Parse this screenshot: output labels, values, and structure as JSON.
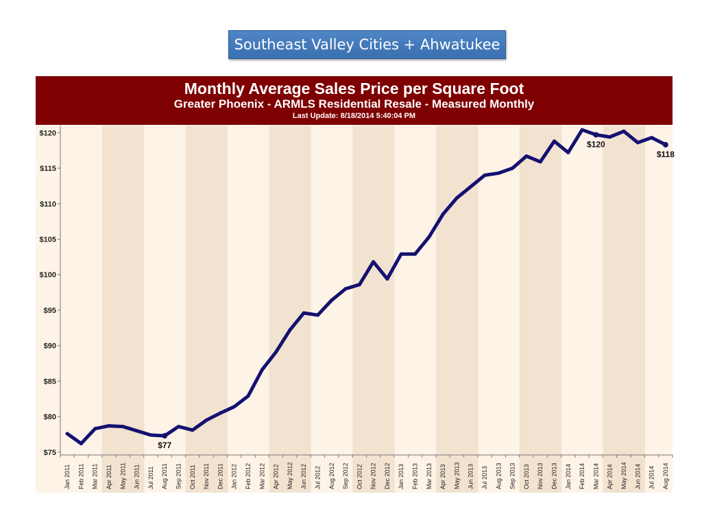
{
  "slide": {
    "title": "Southeast Valley Cities + Ahwatukee"
  },
  "chart_data": {
    "type": "line",
    "title": "Monthly Average Sales Price per Square Foot",
    "subtitle": "Greater Phoenix - ARMLS Residential Resale - Measured Monthly",
    "update": "Last Update: 8/18/2014 5:40:04 PM",
    "categories": [
      "Jan 2011",
      "Feb 2011",
      "Mar 2011",
      "Apr 2011",
      "May 2011",
      "Jun 2011",
      "Jul 2011",
      "Aug 2011",
      "Sep 2011",
      "Oct 2011",
      "Nov 2011",
      "Dec 2011",
      "Jan 2012",
      "Feb 2012",
      "Mar 2012",
      "Apr 2012",
      "May 2012",
      "Jun 2012",
      "Jul 2012",
      "Aug 2012",
      "Sep 2012",
      "Oct 2012",
      "Nov 2012",
      "Dec 2012",
      "Jan 2013",
      "Feb 2013",
      "Mar 2013",
      "Apr 2013",
      "May 2013",
      "Jun 2013",
      "Jul 2013",
      "Aug 2013",
      "Sep 2013",
      "Oct 2013",
      "Nov 2013",
      "Dec 2013",
      "Jan 2014",
      "Feb 2014",
      "Mar 2014",
      "Apr 2014",
      "May 2014",
      "Jun 2014",
      "Jul 2014",
      "Aug 2014"
    ],
    "values": [
      77.6,
      76.2,
      78.3,
      78.7,
      78.6,
      78.0,
      77.4,
      77.3,
      78.6,
      78.1,
      79.5,
      80.5,
      81.4,
      82.9,
      86.6,
      89.1,
      92.2,
      94.6,
      94.3,
      96.4,
      98.0,
      98.6,
      101.8,
      99.4,
      102.9,
      102.9,
      105.3,
      108.5,
      110.8,
      112.4,
      114.0,
      114.3,
      115.0,
      116.7,
      115.9,
      118.8,
      117.2,
      120.4,
      119.7,
      119.4,
      120.2,
      118.6,
      119.3,
      118.3
    ],
    "ylim": [
      74.6,
      121.0
    ],
    "yticks": [
      "$75",
      "$80",
      "$85",
      "$90",
      "$95",
      "$100",
      "$105",
      "$110",
      "$115",
      "$120"
    ],
    "ytick_values": [
      75,
      80,
      85,
      90,
      95,
      100,
      105,
      110,
      115,
      120
    ],
    "annotations": [
      {
        "index": 7,
        "text": "$77"
      },
      {
        "index": 38,
        "text": "$120"
      },
      {
        "index": 43,
        "text": "$118"
      }
    ],
    "colors": {
      "line": "#141170",
      "header": "#7e0000",
      "band_light": "#fdf3e7",
      "band_dark": "#f2e2d0"
    },
    "grid": false,
    "legend": "none"
  }
}
